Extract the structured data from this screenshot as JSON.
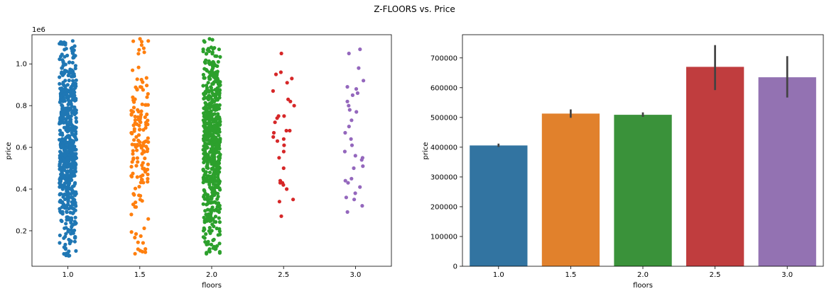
{
  "figure": {
    "title": "Z-FLOORS vs. Price"
  },
  "chart_data": [
    {
      "type": "scatter",
      "subtype": "strip",
      "xlabel": "floors",
      "ylabel": "price",
      "offset_label": "1e6",
      "categories": [
        "1.0",
        "1.5",
        "2.0",
        "2.5",
        "3.0"
      ],
      "ylim": [
        0.03,
        1.14
      ],
      "yticks": [
        0.2,
        0.4,
        0.6,
        0.8,
        1.0
      ],
      "ytick_labels": [
        "0.2",
        "0.4",
        "0.6",
        "0.8",
        "1.0"
      ],
      "grid": false,
      "series": [
        {
          "category": "1.0",
          "color": "#1f77b4",
          "min": 0.08,
          "max": 1.11,
          "approx_points": 9800
        },
        {
          "category": "1.5",
          "color": "#ff7f0e",
          "min": 0.09,
          "max": 1.12,
          "approx_points": 1800
        },
        {
          "category": "2.0",
          "color": "#2ca02c",
          "min": 0.09,
          "max": 1.12,
          "approx_points": 7200
        },
        {
          "category": "2.5",
          "color": "#d62728",
          "values": [
            1.05,
            0.96,
            0.95,
            0.93,
            0.91,
            0.87,
            0.83,
            0.82,
            0.8,
            0.75,
            0.75,
            0.74,
            0.72,
            0.68,
            0.68,
            0.67,
            0.65,
            0.64,
            0.63,
            0.61,
            0.58,
            0.55,
            0.5,
            0.44,
            0.43,
            0.43,
            0.42,
            0.4,
            0.35,
            0.34,
            0.27
          ]
        },
        {
          "category": "3.0",
          "color": "#9467bd",
          "values": [
            1.07,
            1.05,
            0.98,
            0.92,
            0.89,
            0.88,
            0.86,
            0.85,
            0.82,
            0.8,
            0.78,
            0.77,
            0.73,
            0.7,
            0.67,
            0.64,
            0.61,
            0.58,
            0.56,
            0.55,
            0.54,
            0.51,
            0.5,
            0.45,
            0.44,
            0.43,
            0.41,
            0.38,
            0.36,
            0.35,
            0.32,
            0.29
          ]
        }
      ]
    },
    {
      "type": "bar",
      "xlabel": "floors",
      "ylabel": "price",
      "categories": [
        "1.0",
        "1.5",
        "2.0",
        "2.5",
        "3.0"
      ],
      "values": [
        406000,
        513000,
        509000,
        670000,
        635000
      ],
      "error_low": [
        401000,
        499000,
        502000,
        592000,
        567000
      ],
      "error_high": [
        412000,
        527000,
        517000,
        743000,
        706000
      ],
      "colors": [
        "#3274a1",
        "#e1812c",
        "#3a923a",
        "#c03d3e",
        "#9372b2"
      ],
      "ylim": [
        0,
        778000
      ],
      "yticks": [
        0,
        100000,
        200000,
        300000,
        400000,
        500000,
        600000,
        700000
      ],
      "ytick_labels": [
        "0",
        "100000",
        "200000",
        "300000",
        "400000",
        "500000",
        "600000",
        "700000"
      ],
      "grid": false
    }
  ]
}
